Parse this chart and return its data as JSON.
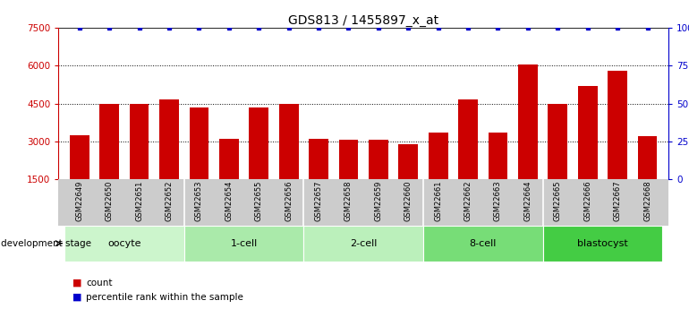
{
  "title": "GDS813 / 1455897_x_at",
  "samples": [
    "GSM22649",
    "GSM22650",
    "GSM22651",
    "GSM22652",
    "GSM22653",
    "GSM22654",
    "GSM22655",
    "GSM22656",
    "GSM22657",
    "GSM22658",
    "GSM22659",
    "GSM22660",
    "GSM22661",
    "GSM22662",
    "GSM22663",
    "GSM22664",
    "GSM22665",
    "GSM22666",
    "GSM22667",
    "GSM22668"
  ],
  "counts": [
    3250,
    4500,
    4500,
    4650,
    4350,
    3100,
    4350,
    4500,
    3100,
    3050,
    3050,
    2900,
    3350,
    4650,
    3350,
    6050,
    4500,
    5200,
    5800,
    3200
  ],
  "percentile": [
    100,
    100,
    100,
    100,
    100,
    100,
    100,
    100,
    100,
    100,
    100,
    100,
    100,
    100,
    100,
    100,
    100,
    100,
    100,
    100
  ],
  "bar_color": "#cc0000",
  "percentile_color": "#0000cc",
  "ylim_left": [
    1500,
    7500
  ],
  "yticks_left": [
    1500,
    3000,
    4500,
    6000,
    7500
  ],
  "ylim_right": [
    0,
    100
  ],
  "yticks_right": [
    0,
    25,
    50,
    75,
    100
  ],
  "groups": [
    {
      "label": "oocyte",
      "start": 0,
      "end": 4
    },
    {
      "label": "1-cell",
      "start": 4,
      "end": 8
    },
    {
      "label": "2-cell",
      "start": 8,
      "end": 12
    },
    {
      "label": "8-cell",
      "start": 12,
      "end": 16
    },
    {
      "label": "blastocyst",
      "start": 16,
      "end": 20
    }
  ],
  "group_colors": [
    "#ccf5cc",
    "#aaeaaa",
    "#bbf0bb",
    "#77dd77",
    "#44cc44"
  ],
  "left_axis_color": "#cc0000",
  "right_axis_color": "#0000cc",
  "tick_label_area_color": "#cccccc",
  "dev_stage_label": "development stage"
}
